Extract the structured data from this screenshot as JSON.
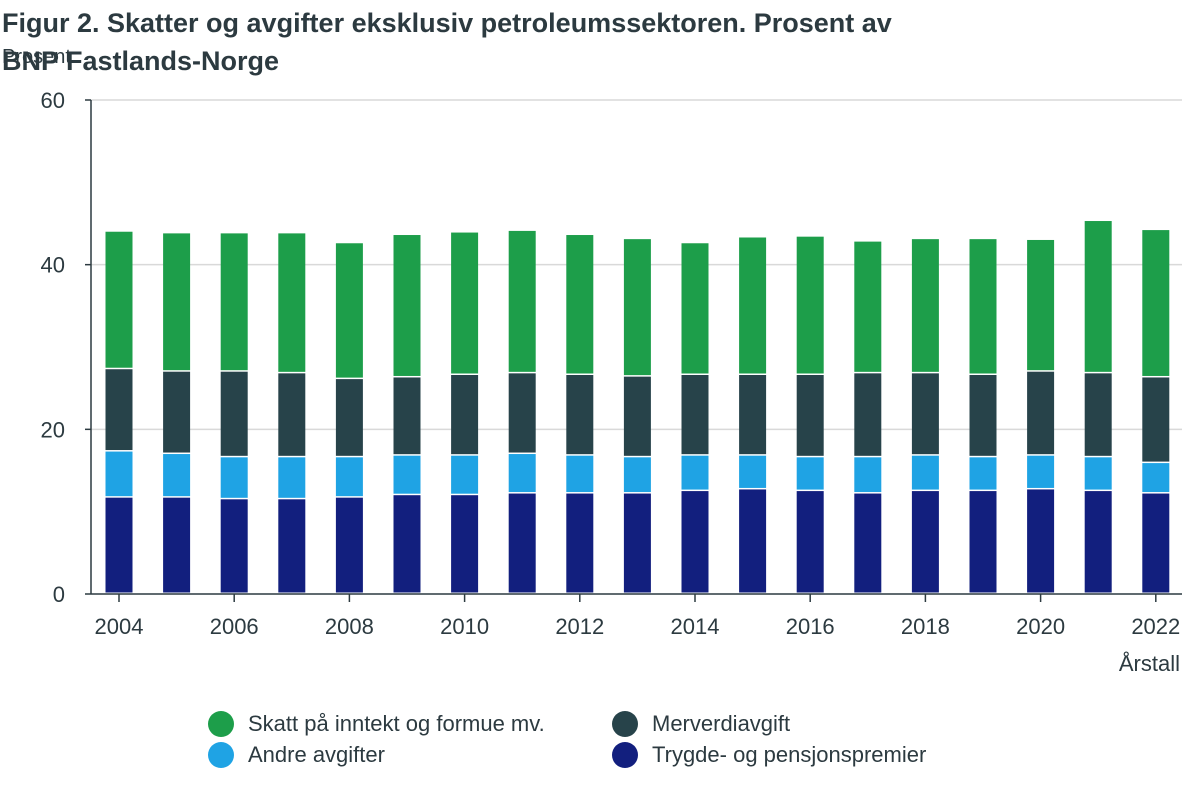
{
  "chart_data": {
    "type": "bar",
    "stacked": true,
    "title": "Figur 2. Skatter og avgifter eksklusiv petroleumssektoren. Prosent av BNP Fastlands-Norge",
    "ylabel": "Prosent",
    "xlabel": "Årstall",
    "ylim": [
      0,
      60
    ],
    "yticks": [
      0,
      20,
      40,
      60
    ],
    "grid": true,
    "legend_position": "bottom",
    "categories": [
      "2004",
      "2005",
      "2006",
      "2007",
      "2008",
      "2009",
      "2010",
      "2011",
      "2012",
      "2013",
      "2014",
      "2015",
      "2016",
      "2017",
      "2018",
      "2019",
      "2020",
      "2021",
      "2022"
    ],
    "xtick_labels": [
      "2004",
      "2006",
      "2008",
      "2010",
      "2012",
      "2014",
      "2016",
      "2018",
      "2020",
      "2022"
    ],
    "series": [
      {
        "name": "Trygde- og pensjonspremier",
        "color": "#121f7e",
        "values": [
          11.7,
          11.7,
          11.5,
          11.5,
          11.7,
          12.0,
          12.0,
          12.2,
          12.2,
          12.2,
          12.5,
          12.7,
          12.5,
          12.2,
          12.5,
          12.5,
          12.7,
          12.5,
          12.2
        ]
      },
      {
        "name": "Andre avgifter",
        "color": "#1fa3e4",
        "values": [
          5.6,
          5.3,
          5.1,
          5.1,
          4.9,
          4.8,
          4.8,
          4.8,
          4.6,
          4.4,
          4.3,
          4.1,
          4.1,
          4.4,
          4.3,
          4.1,
          4.1,
          4.1,
          3.7
        ]
      },
      {
        "name": "Merverdiavgift",
        "color": "#27434a",
        "values": [
          10.0,
          10.0,
          10.4,
          10.2,
          9.5,
          9.5,
          9.8,
          9.8,
          9.8,
          9.8,
          9.8,
          9.8,
          10.0,
          10.2,
          10.0,
          10.0,
          10.2,
          10.2,
          10.4
        ]
      },
      {
        "name": "Skatt på inntekt og formue mv.",
        "color": "#1d9e4a",
        "values": [
          16.7,
          16.8,
          16.8,
          17.0,
          16.5,
          17.3,
          17.3,
          17.3,
          17.0,
          16.7,
          16.0,
          16.7,
          16.8,
          16.0,
          16.3,
          16.5,
          16.0,
          18.5,
          17.9
        ]
      }
    ]
  },
  "legend": [
    {
      "label": "Skatt på inntekt og formue mv.",
      "color": "#1d9e4a"
    },
    {
      "label": "Merverdiavgift",
      "color": "#27434a"
    },
    {
      "label": "Andre avgifter",
      "color": "#1fa3e4"
    },
    {
      "label": "Trygde- og pensjonspremier",
      "color": "#121f7e"
    }
  ]
}
